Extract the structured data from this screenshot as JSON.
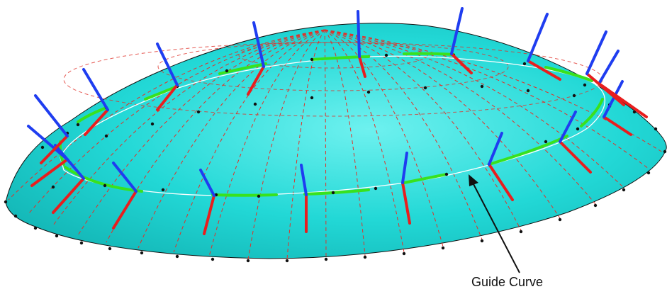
{
  "annotation": {
    "label": "Guide Curve"
  },
  "colors": {
    "surface": "#22d8d6",
    "surface_highlight": "#6ef1ef",
    "surface_shadow": "#12b3b3",
    "isolines": "#e0322a",
    "guide_curve": "#ffffff",
    "segment_highlight": "#38e21e",
    "normal_vectors": "#1f3df0",
    "tangent_vectors": "#e81e1e",
    "points": "#111111",
    "arrow": "#111111"
  }
}
